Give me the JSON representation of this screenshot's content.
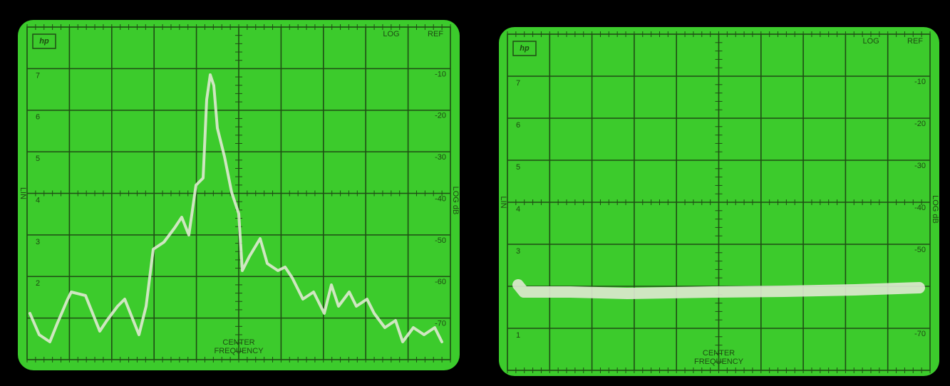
{
  "screens": [
    {
      "logo": "hp",
      "log": "LOG",
      "ref": "REF",
      "lin": "LIN",
      "log_db": "LOG dB",
      "center": "CENTER",
      "frequency": "FREQUENCY",
      "lin_labels": [
        "7",
        "6",
        "5",
        "4",
        "3",
        "2",
        null
      ],
      "db_labels": [
        "-10",
        "-20",
        "-30",
        "-40",
        "-50",
        "-60",
        "-70"
      ]
    },
    {
      "logo": "hp",
      "log": "LOG",
      "ref": "REF",
      "lin": "LIN",
      "log_db": "LOG dB",
      "center": "CENTER",
      "frequency": "FREQUENCY",
      "lin_labels": [
        "7",
        "6",
        "5",
        "4",
        "3",
        null,
        "1"
      ],
      "db_labels": [
        "-10",
        "-20",
        "-30",
        "-40",
        "-50",
        null,
        "-70"
      ]
    }
  ]
}
